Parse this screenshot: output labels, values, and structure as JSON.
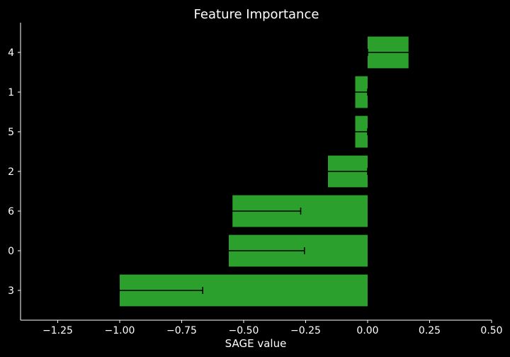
{
  "chart_data": {
    "type": "bar",
    "orientation": "horizontal",
    "title": "Feature Importance",
    "xlabel": "SAGE value",
    "ylabel": "",
    "xlim": [
      -1.4,
      0.5
    ],
    "xticks": [
      "−1.25",
      "−1.00",
      "−0.75",
      "−0.50",
      "−0.25",
      "0.00",
      "0.25",
      "0.50"
    ],
    "xtick_values": [
      -1.25,
      -1.0,
      -0.75,
      -0.5,
      -0.25,
      0.0,
      0.25,
      0.5
    ],
    "categories": [
      "4",
      "1",
      "5",
      "2",
      "6",
      "0",
      "3"
    ],
    "values": [
      0.165,
      -0.05,
      -0.05,
      -0.16,
      -0.545,
      -0.56,
      -1.0
    ],
    "errors": [
      0.165,
      0.05,
      0.05,
      0.16,
      0.275,
      0.305,
      0.335
    ],
    "bar_color": "#2ca02c",
    "error_color": "#000000",
    "background": "#000000",
    "grid": false
  }
}
